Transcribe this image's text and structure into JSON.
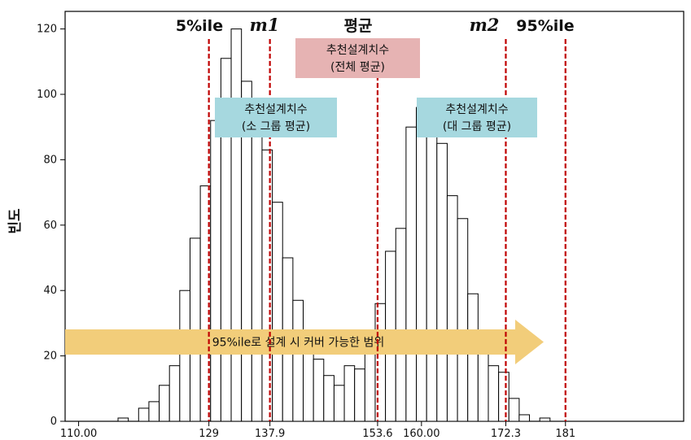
{
  "chart_data": {
    "type": "bar",
    "title": "",
    "ylabel": "빈도",
    "xlabel": "",
    "ylim": [
      0,
      120
    ],
    "yticks": [
      "0",
      "20",
      "40",
      "60",
      "80",
      "100",
      "120"
    ],
    "xticks": [
      {
        "value": 110,
        "label": "110.00"
      },
      {
        "value": 129,
        "label": "129"
      },
      {
        "value": 137.9,
        "label": "137.9"
      },
      {
        "value": 153.6,
        "label": "153.6"
      },
      {
        "value": 160,
        "label": "160.00"
      },
      {
        "value": 172.3,
        "label": "172.3"
      },
      {
        "value": 181,
        "label": "181"
      }
    ],
    "bin_width": 1.5,
    "bin_start": 114.25,
    "values": [
      0,
      1,
      0,
      4,
      6,
      11,
      17,
      40,
      56,
      72,
      92,
      111,
      120,
      104,
      95,
      83,
      67,
      50,
      37,
      23,
      19,
      14,
      11,
      17,
      16,
      26,
      36,
      52,
      59,
      90,
      96,
      91,
      85,
      69,
      62,
      39,
      25,
      17,
      15,
      7,
      2,
      0,
      1
    ],
    "reference_lines": [
      {
        "x": 129,
        "label": "5%ile",
        "italic": false
      },
      {
        "x": 137.9,
        "label": "m1",
        "italic": true
      },
      {
        "x": 153.6,
        "label": "평균",
        "italic": false
      },
      {
        "x": 172.3,
        "label": "m2",
        "italic": true
      },
      {
        "x": 181,
        "label": "95%ile",
        "italic": false
      }
    ],
    "annotations": [
      {
        "id": "overall",
        "lines": [
          "추천설계치수",
          "(전체 평균)"
        ],
        "color": "#e6b3b3"
      },
      {
        "id": "small",
        "lines": [
          "추천설계치수",
          "(소 그룹 평균)"
        ],
        "color": "#a6d8df"
      },
      {
        "id": "large",
        "lines": [
          "추천설계치수",
          "(대 그룹 평균)"
        ],
        "color": "#a6d8df"
      }
    ],
    "arrow": {
      "label": "95%ile로 설계 시 커버 가능한 범위",
      "color": "#f2cd7a"
    }
  }
}
